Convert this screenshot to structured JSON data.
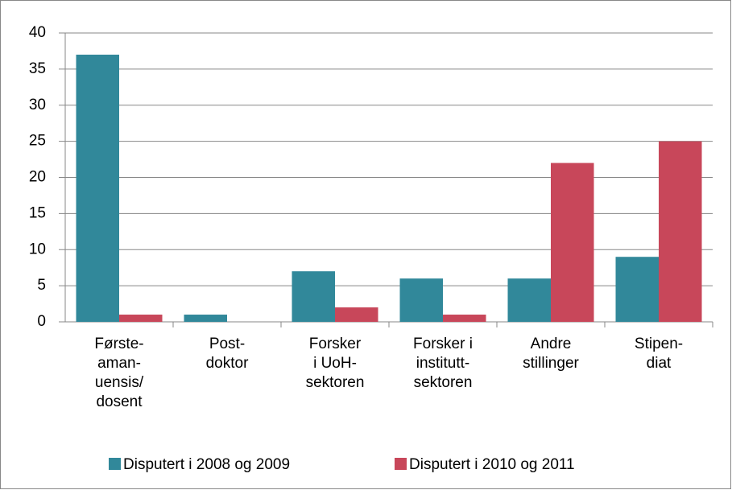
{
  "chart_data": {
    "type": "bar",
    "categories": [
      "Første-\naman-\nuensis/\ndosent",
      "Post-\ndoktor",
      "Forsker\ni UoH-\nsektoren",
      "Forsker i\ninstitutt-\nsektoren",
      "Andre\nstillinger",
      "Stipen-\ndiat"
    ],
    "series": [
      {
        "name": "Disputert i 2008 og 2009",
        "color": "#31889a",
        "values": [
          37,
          1,
          7,
          6,
          6,
          9
        ]
      },
      {
        "name": "Disputert i 2010 og 2011",
        "color": "#c8475a",
        "values": [
          1,
          0,
          2,
          1,
          22,
          25
        ]
      }
    ],
    "ylim": [
      0,
      40
    ],
    "yticks": [
      0,
      5,
      10,
      15,
      20,
      25,
      30,
      35,
      40
    ],
    "grid": true,
    "legend": "bottom"
  }
}
